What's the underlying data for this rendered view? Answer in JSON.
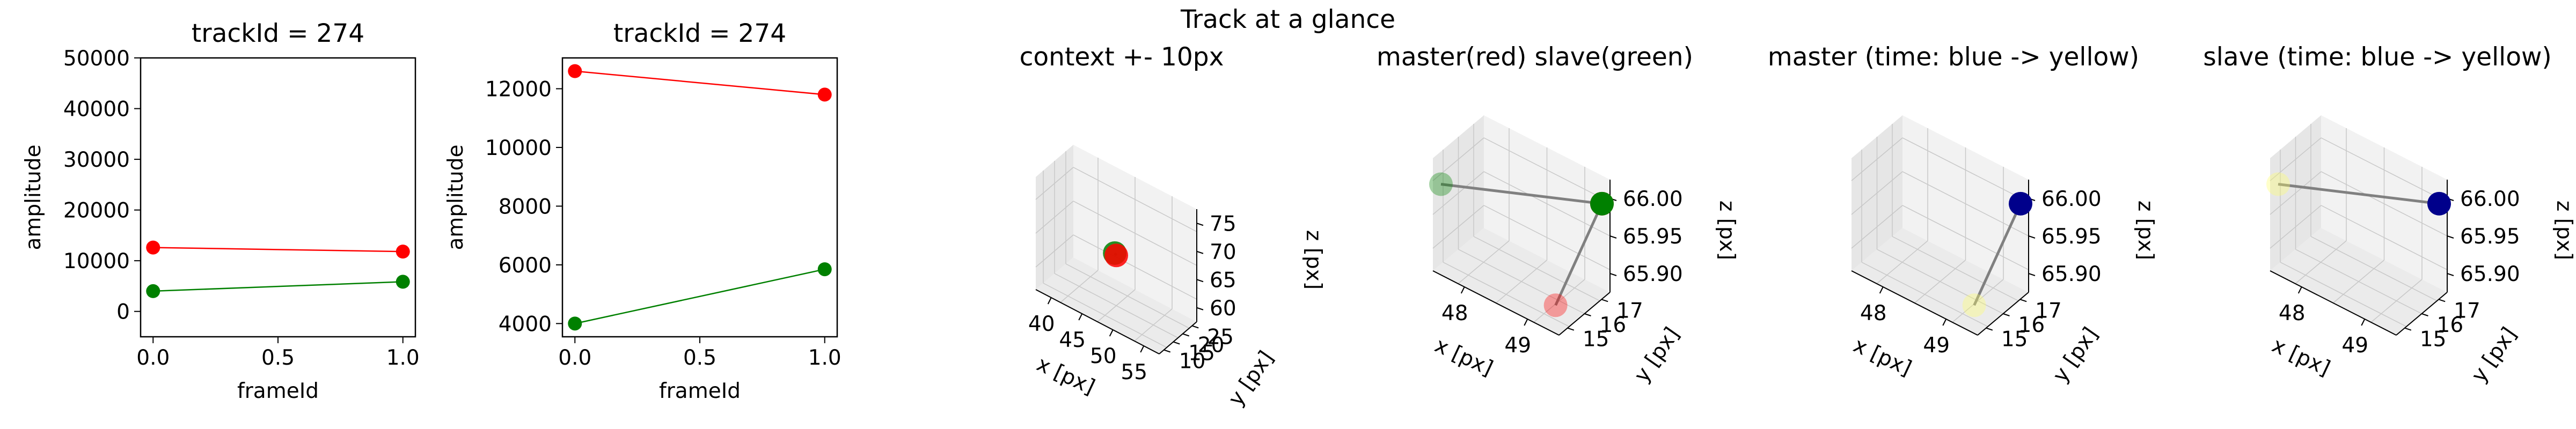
{
  "figure_title": "Track at a glance",
  "chart_data": [
    {
      "type": "line",
      "title": "trackId = 274",
      "xlabel": "frameId",
      "ylabel": "amplitude",
      "x": [
        0,
        1
      ],
      "xlim": [
        -0.05,
        1.05
      ],
      "ylim": [
        -5000,
        50000
      ],
      "xticks": [
        0.0,
        0.5,
        1.0
      ],
      "xtick_labels": [
        "0.0",
        "0.5",
        "1.0"
      ],
      "yticks": [
        0,
        10000,
        20000,
        30000,
        40000,
        50000
      ],
      "ytick_labels": [
        "0",
        "10000",
        "20000",
        "30000",
        "40000",
        "50000"
      ],
      "series": [
        {
          "color": "#ff0000",
          "values": [
            12600,
            11800
          ]
        },
        {
          "color": "#008000",
          "values": [
            4000,
            5850
          ]
        }
      ]
    },
    {
      "type": "line",
      "title": "trackId = 274",
      "xlabel": "frameId",
      "ylabel": "amplitude",
      "x": [
        0,
        1
      ],
      "xlim": [
        -0.05,
        1.05
      ],
      "ylim": [
        3550,
        13050
      ],
      "xticks": [
        0.0,
        0.5,
        1.0
      ],
      "xtick_labels": [
        "0.0",
        "0.5",
        "1.0"
      ],
      "yticks": [
        4000,
        6000,
        8000,
        10000,
        12000
      ],
      "ytick_labels": [
        "4000",
        "6000",
        "8000",
        "10000",
        "12000"
      ],
      "series": [
        {
          "color": "#ff0000",
          "values": [
            12600,
            11800
          ]
        },
        {
          "color": "#008000",
          "values": [
            4000,
            5850
          ]
        }
      ]
    },
    {
      "type": "scatter",
      "projection": "3d",
      "title": "context +- 10px",
      "xlabel": "x [px]",
      "ylabel": "y [px]",
      "zlabel": "z [px]",
      "xtick_labels": [
        "40",
        "45",
        "50",
        "55"
      ],
      "ytick_labels": [
        "10",
        "15",
        "20",
        "25"
      ],
      "ztick_labels": [
        "60",
        "65",
        "70",
        "75"
      ],
      "points": [
        {
          "x": 48.5,
          "y": 16.5,
          "z": 66.0,
          "color": "#008000"
        },
        {
          "x": 49.0,
          "y": 16.0,
          "z": 65.9,
          "color": "#ff0000"
        }
      ]
    },
    {
      "type": "scatter",
      "projection": "3d",
      "title": "master(red) slave(green)",
      "xlabel": "x [px]",
      "ylabel": "y [px]",
      "zlabel": "z [px]",
      "xtick_labels": [
        "48",
        "49"
      ],
      "ytick_labels": [
        "15",
        "16",
        "17"
      ],
      "ztick_labels": [
        "65.90",
        "65.95",
        "66.00"
      ],
      "points": [
        {
          "x": 49.0,
          "y": 17.0,
          "z": 66.0,
          "color": "#ff0000",
          "alpha": 1.0
        },
        {
          "x": 49.0,
          "y": 17.0,
          "z": 66.0,
          "color": "#008000",
          "alpha": 1.0
        },
        {
          "x": 49.0,
          "y": 15.0,
          "z": 65.9,
          "color": "#ff0000",
          "alpha": 0.35
        },
        {
          "x": 47.0,
          "y": 15.0,
          "z": 66.0,
          "color": "#008000",
          "alpha": 0.35
        }
      ]
    },
    {
      "type": "scatter",
      "projection": "3d",
      "title": "master (time: blue -> yellow)",
      "xlabel": "x [px]",
      "ylabel": "y [px]",
      "zlabel": "z [px]",
      "xtick_labels": [
        "48",
        "49"
      ],
      "ytick_labels": [
        "15",
        "16",
        "17"
      ],
      "ztick_labels": [
        "65.90",
        "65.95",
        "66.00"
      ],
      "points": [
        {
          "x": 49.0,
          "y": 17.0,
          "z": 66.0,
          "color": "#00008b",
          "alpha": 1.0
        },
        {
          "x": 49.0,
          "y": 15.0,
          "z": 65.9,
          "color": "#ffff66",
          "alpha": 0.35
        }
      ]
    },
    {
      "type": "scatter",
      "projection": "3d",
      "title": "slave (time: blue -> yellow)",
      "xlabel": "x [px]",
      "ylabel": "y [px]",
      "zlabel": "z [px]",
      "xtick_labels": [
        "48",
        "49"
      ],
      "ytick_labels": [
        "15",
        "16",
        "17"
      ],
      "ztick_labels": [
        "65.90",
        "65.95",
        "66.00"
      ],
      "points": [
        {
          "x": 49.0,
          "y": 17.0,
          "z": 66.0,
          "color": "#00008b",
          "alpha": 1.0
        },
        {
          "x": 47.0,
          "y": 15.0,
          "z": 66.0,
          "color": "#ffff66",
          "alpha": 0.35
        }
      ]
    }
  ]
}
